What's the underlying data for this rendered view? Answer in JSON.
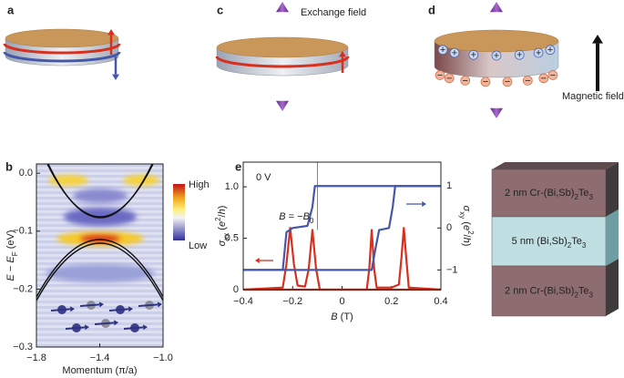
{
  "panel_labels": [
    "a",
    "b",
    "c",
    "d",
    "e"
  ],
  "diagrams": {
    "exchange_field": "Exchange field",
    "magnetic_field": "Magnetic field",
    "layers": [
      [
        {
          "t": "2 nm Cr-(Bi,Sb)"
        },
        {
          "t": "2",
          "sub": true
        },
        {
          "t": "Te"
        },
        {
          "t": "3",
          "sub": true
        }
      ],
      [
        {
          "t": "5 nm (Bi,Sb)"
        },
        {
          "t": "2",
          "sub": true
        },
        {
          "t": "Te"
        },
        {
          "t": "3",
          "sub": true
        }
      ],
      [
        {
          "t": "2 nm Cr-(Bi,Sb)"
        },
        {
          "t": "2",
          "sub": true
        },
        {
          "t": "Te"
        },
        {
          "t": "3",
          "sub": true
        }
      ]
    ]
  },
  "chart_data": [
    {
      "type": "image",
      "xlabel": [
        {
          "t": "Momentum (π/a)"
        }
      ],
      "ylabel": [
        {
          "t": "E",
          "i": true
        },
        {
          "t": " − "
        },
        {
          "t": "E",
          "i": true
        },
        {
          "t": "F",
          "sub": true
        },
        {
          "t": " (eV)"
        }
      ],
      "xlim": [
        -1.8,
        -1.0
      ],
      "xticks": [
        {
          "value": -1.8,
          "label": "−1.8"
        },
        {
          "value": -1.4,
          "label": "−1.4"
        },
        {
          "value": -1.0,
          "label": "−1.0"
        }
      ],
      "ylim": [
        -0.3,
        0.016
      ],
      "yticks": [
        {
          "value": 0,
          "label": "0.0"
        },
        {
          "value": -0.1,
          "label": "−0.1"
        },
        {
          "value": -0.2,
          "label": "−0.2"
        },
        {
          "value": -0.3,
          "label": "−0.3"
        }
      ],
      "colorbar": {
        "high": "High",
        "low": "Low"
      }
    },
    {
      "type": "line",
      "xlabel": [
        {
          "t": "B",
          "i": true
        },
        {
          "t": " (T)"
        }
      ],
      "ylabel": [
        {
          "t": "σ",
          "i": true
        },
        {
          "t": "xx",
          "sub": true
        },
        {
          "t": " ("
        },
        {
          "t": "e",
          "i": true
        },
        {
          "t": "2",
          "sup": true
        },
        {
          "t": "/"
        },
        {
          "t": "h",
          "i": true
        },
        {
          "t": ")"
        }
      ],
      "y2label": [
        {
          "t": "σ",
          "i": true
        },
        {
          "t": "xy",
          "sub": true
        },
        {
          "t": " ("
        },
        {
          "t": "e",
          "i": true
        },
        {
          "t": "2",
          "sup": true
        },
        {
          "t": "/"
        },
        {
          "t": "h",
          "i": true
        },
        {
          "t": ")"
        }
      ],
      "xlim": [
        -0.4,
        0.4
      ],
      "xticks": [
        {
          "value": -0.4,
          "label": "−0.4"
        },
        {
          "value": -0.2,
          "label": "−0.2"
        },
        0,
        0.2,
        0.4
      ],
      "ylim": [
        0,
        1.24
      ],
      "yticks": [
        0,
        0.5,
        {
          "value": 1,
          "label": "1.0"
        }
      ],
      "y2lim": [
        -1.47,
        1.57
      ],
      "y2ticks": [
        {
          "value": -1,
          "label": "−1"
        },
        0,
        1
      ],
      "annotations": [
        {
          "text": "0 V"
        },
        {
          "text": [
            {
              "t": "B",
              "i": true
            },
            {
              "t": " = −"
            },
            {
              "t": "B",
              "i": true
            },
            {
              "t": "0",
              "sub": true
            }
          ],
          "x": -0.1
        }
      ],
      "series": [
        {
          "color": "#d7301f",
          "x": [
            -0.4,
            0.1,
            0.11,
            0.12,
            0.13,
            0.14,
            0.2,
            0.23,
            0.24,
            0.25,
            0.26,
            0.27,
            0.4
          ],
          "values": [
            0,
            0,
            0.2,
            0.58,
            0.2,
            0.02,
            0.02,
            0.05,
            0.3,
            0.6,
            0.3,
            0.02,
            0
          ]
        },
        {
          "color": "#d7301f",
          "x": [
            -0.4,
            -0.24,
            -0.225,
            -0.21,
            -0.195,
            -0.18,
            -0.15,
            -0.135,
            -0.12,
            -0.105,
            -0.09,
            0.4
          ],
          "values": [
            0,
            0.02,
            0.25,
            0.6,
            0.25,
            0.04,
            0.03,
            0.2,
            0.58,
            0.2,
            0,
            0
          ]
        },
        {
          "color": "#4457a8",
          "axis": "y2",
          "x": [
            -0.4,
            0.12,
            0.135,
            0.15,
            0.19,
            0.205,
            0.215,
            0.4
          ],
          "values": [
            -1,
            -1,
            -0.5,
            -0.05,
            0,
            0.5,
            1,
            1
          ]
        },
        {
          "color": "#4457a8",
          "axis": "y2",
          "x": [
            -0.4,
            -0.24,
            -0.225,
            -0.2,
            -0.14,
            -0.12,
            -0.11,
            0.4
          ],
          "values": [
            -1,
            -1,
            -0.1,
            0,
            0.05,
            0.5,
            1,
            1
          ]
        }
      ]
    }
  ]
}
